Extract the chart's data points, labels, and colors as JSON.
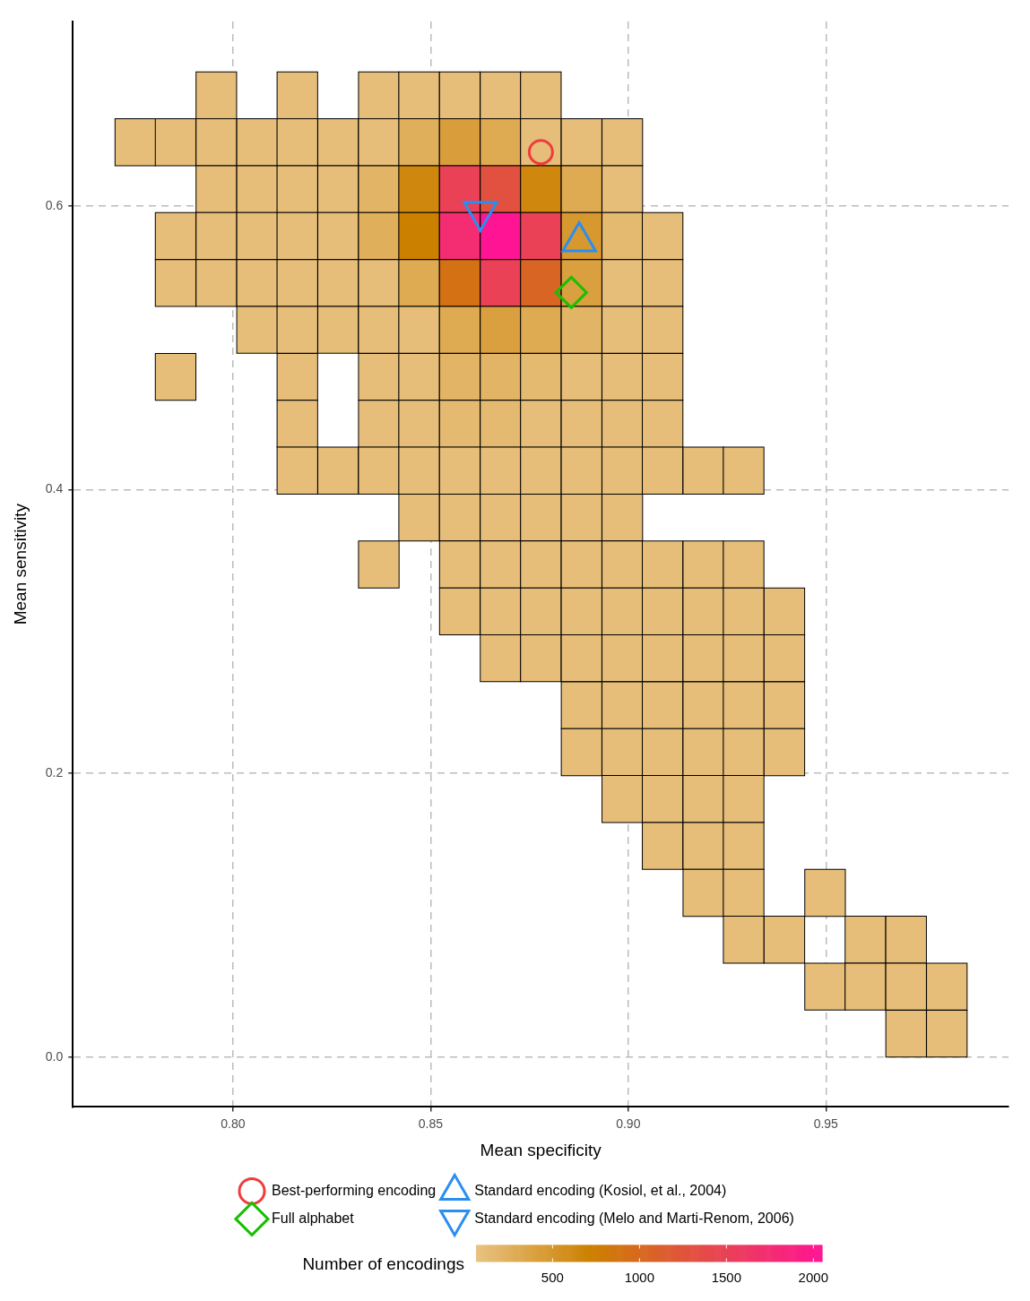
{
  "chart_data": {
    "type": "heatmap",
    "xlabel": "Mean specificity",
    "ylabel": "Mean sensitivity",
    "clabel": "Number of encodings",
    "xlim": [
      0.7595,
      0.9962
    ],
    "ylim": [
      -0.0352,
      0.73
    ],
    "xticks": [
      {
        "value": 0.8,
        "label": "0.80"
      },
      {
        "value": 0.85,
        "label": "0.85"
      },
      {
        "value": 0.9,
        "label": "0.90"
      },
      {
        "value": 0.95,
        "label": "0.95"
      }
    ],
    "yticks": [
      {
        "value": 0,
        "label": "0.0"
      },
      {
        "value": 0.2,
        "label": "0.2"
      },
      {
        "value": 0.4,
        "label": "0.4"
      },
      {
        "value": 0.6,
        "label": "0.6"
      }
    ],
    "clim": [
      60,
      2050
    ],
    "cticks": [
      500,
      1000,
      1500,
      2000
    ],
    "grid": true,
    "legend": "bottom",
    "x": [
      0.7753,
      0.7855,
      0.7958,
      0.8061,
      0.8163,
      0.8266,
      0.8369,
      0.8471,
      0.8574,
      0.8677,
      0.8779,
      0.8882,
      0.8985,
      0.9087,
      0.919,
      0.9292,
      0.9395,
      0.9498,
      0.96,
      0.9703,
      0.9806
    ],
    "y": [
      0.6779,
      0.6449,
      0.6118,
      0.5787,
      0.5456,
      0.5126,
      0.4795,
      0.4464,
      0.4134,
      0.3803,
      0.3472,
      0.3141,
      0.2811,
      0.248,
      0.2149,
      0.1819,
      0.1488,
      0.1157,
      0.0827,
      0.0496,
      0.0165
    ],
    "cells": [
      [
        null,
        null,
        100,
        null,
        100,
        null,
        100,
        100,
        100,
        100,
        100,
        null,
        null,
        null,
        null,
        null,
        null,
        null,
        null,
        null,
        null
      ],
      [
        100,
        100,
        100,
        100,
        100,
        100,
        100,
        250,
        420,
        300,
        100,
        100,
        100,
        null,
        null,
        null,
        null,
        null,
        null,
        null,
        null
      ],
      [
        null,
        null,
        100,
        100,
        100,
        100,
        200,
        650,
        1500,
        1300,
        650,
        300,
        100,
        null,
        null,
        null,
        null,
        null,
        null,
        null,
        null
      ],
      [
        null,
        100,
        100,
        100,
        100,
        100,
        250,
        720,
        1750,
        2050,
        1500,
        480,
        150,
        100,
        null,
        null,
        null,
        null,
        null,
        null,
        null
      ],
      [
        null,
        100,
        100,
        100,
        100,
        100,
        100,
        300,
        900,
        1500,
        1050,
        400,
        100,
        100,
        null,
        null,
        null,
        null,
        null,
        null,
        null
      ],
      [
        null,
        null,
        null,
        100,
        100,
        100,
        100,
        100,
        300,
        400,
        300,
        200,
        100,
        100,
        null,
        null,
        null,
        null,
        null,
        null,
        null
      ],
      [
        null,
        100,
        null,
        null,
        100,
        null,
        100,
        100,
        200,
        200,
        150,
        100,
        100,
        100,
        null,
        null,
        null,
        null,
        null,
        null,
        null
      ],
      [
        null,
        null,
        null,
        null,
        100,
        null,
        100,
        100,
        150,
        150,
        100,
        100,
        100,
        100,
        null,
        null,
        null,
        null,
        null,
        null,
        null
      ],
      [
        null,
        null,
        null,
        null,
        100,
        100,
        100,
        100,
        100,
        100,
        100,
        100,
        100,
        100,
        100,
        100,
        null,
        null,
        null,
        null,
        null
      ],
      [
        null,
        null,
        null,
        null,
        null,
        null,
        null,
        100,
        100,
        100,
        100,
        100,
        100,
        null,
        null,
        null,
        null,
        null,
        null,
        null,
        null
      ],
      [
        null,
        null,
        null,
        null,
        null,
        null,
        100,
        null,
        100,
        100,
        100,
        100,
        100,
        100,
        100,
        100,
        null,
        null,
        null,
        null,
        null
      ],
      [
        null,
        null,
        null,
        null,
        null,
        null,
        null,
        null,
        100,
        100,
        100,
        100,
        100,
        100,
        100,
        100,
        100,
        null,
        null,
        null,
        null
      ],
      [
        null,
        null,
        null,
        null,
        null,
        null,
        null,
        null,
        null,
        100,
        100,
        100,
        100,
        100,
        100,
        100,
        100,
        null,
        null,
        null,
        null
      ],
      [
        null,
        null,
        null,
        null,
        null,
        null,
        null,
        null,
        null,
        null,
        null,
        100,
        100,
        100,
        100,
        100,
        100,
        null,
        null,
        null,
        null
      ],
      [
        null,
        null,
        null,
        null,
        null,
        null,
        null,
        null,
        null,
        null,
        null,
        100,
        100,
        100,
        100,
        100,
        100,
        null,
        null,
        null,
        null
      ],
      [
        null,
        null,
        null,
        null,
        null,
        null,
        null,
        null,
        null,
        null,
        null,
        null,
        100,
        100,
        100,
        100,
        null,
        null,
        null,
        null,
        null
      ],
      [
        null,
        null,
        null,
        null,
        null,
        null,
        null,
        null,
        null,
        null,
        null,
        null,
        null,
        100,
        100,
        100,
        null,
        null,
        null,
        null,
        null
      ],
      [
        null,
        null,
        null,
        null,
        null,
        null,
        null,
        null,
        null,
        null,
        null,
        null,
        null,
        null,
        100,
        100,
        null,
        100,
        null,
        null,
        null
      ],
      [
        null,
        null,
        null,
        null,
        null,
        null,
        null,
        null,
        null,
        null,
        null,
        null,
        null,
        null,
        null,
        100,
        100,
        null,
        100,
        100,
        null
      ],
      [
        null,
        null,
        null,
        null,
        null,
        null,
        null,
        null,
        null,
        null,
        null,
        null,
        null,
        null,
        null,
        null,
        null,
        100,
        100,
        100,
        100
      ],
      [
        null,
        null,
        null,
        null,
        null,
        null,
        null,
        null,
        null,
        null,
        null,
        null,
        null,
        null,
        null,
        null,
        null,
        null,
        null,
        100,
        100
      ]
    ],
    "series": [
      {
        "type": "scatter",
        "name": "Best-performing encoding",
        "color": "#f03c3c",
        "marker": "circle",
        "x": [
          0.8779
        ],
        "values": [
          0.638
        ]
      },
      {
        "type": "scatter",
        "name": "Full alphabet",
        "color": "#17c000",
        "marker": "diamond",
        "x": [
          0.8856
        ],
        "values": [
          0.539
        ]
      },
      {
        "type": "scatter",
        "name": "Standard encoding (Kosiol, et al., 2004)",
        "color": "#2a8ef0",
        "marker": "triangle",
        "x": [
          0.8876
        ],
        "values": [
          0.575
        ]
      },
      {
        "type": "scatter",
        "name": "Standard encoding (Melo and Marti-Renom, 2006)",
        "color": "#2a8ef0",
        "marker": "triangle-down",
        "x": [
          0.8626
        ],
        "values": [
          0.596
        ]
      }
    ]
  }
}
